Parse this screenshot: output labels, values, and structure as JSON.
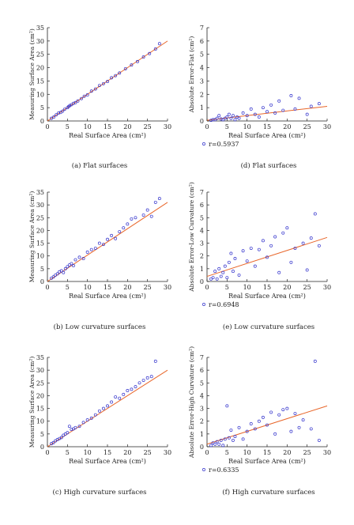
{
  "colors": {
    "points": "#3333cc",
    "fit_line": "#e8662a",
    "axis": "#222222"
  },
  "chart_data": [
    {
      "type": "scatter",
      "caption": "(a) Flat surfaces",
      "xlabel": "Real Surface Area (cm²)",
      "ylabel": "Measuring Surface Area (cm²)",
      "xlim": [
        0,
        30
      ],
      "ylim": [
        0,
        35
      ],
      "xticks": [
        0,
        5,
        10,
        15,
        20,
        25,
        30
      ],
      "yticks": [
        0,
        5,
        10,
        15,
        20,
        25,
        30,
        35
      ],
      "fit_line": [
        [
          0,
          0
        ],
        [
          30,
          30
        ]
      ],
      "points": [
        [
          1,
          1
        ],
        [
          1.6,
          1.5
        ],
        [
          2.2,
          2.3
        ],
        [
          2.8,
          3
        ],
        [
          3.3,
          3.2
        ],
        [
          3.8,
          3.7
        ],
        [
          4.3,
          4.4
        ],
        [
          5,
          5
        ],
        [
          5.3,
          5.4
        ],
        [
          5.6,
          5.8
        ],
        [
          6,
          6.1
        ],
        [
          6.5,
          6.6
        ],
        [
          7,
          6.9
        ],
        [
          7.6,
          7.5
        ],
        [
          8.5,
          8.4
        ],
        [
          9.2,
          9.3
        ],
        [
          10,
          9.8
        ],
        [
          11,
          11.2
        ],
        [
          12,
          12
        ],
        [
          13,
          13.3
        ],
        [
          14,
          14
        ],
        [
          15,
          14.8
        ],
        [
          16,
          16.2
        ],
        [
          17,
          17
        ],
        [
          18,
          18
        ],
        [
          19.5,
          19.6
        ],
        [
          21,
          21
        ],
        [
          22.5,
          22.3
        ],
        [
          24,
          24
        ],
        [
          25.5,
          25.3
        ],
        [
          27,
          27
        ],
        [
          28,
          29
        ]
      ]
    },
    {
      "type": "scatter",
      "caption": "(d) Flat surfaces",
      "xlabel": "Real Surface Area (cm²)",
      "ylabel": "Absolute Error-Flat (cm²)",
      "xlim": [
        0,
        30
      ],
      "ylim": [
        0,
        7
      ],
      "xticks": [
        0,
        5,
        10,
        15,
        20,
        25,
        30
      ],
      "yticks": [
        0,
        1,
        2,
        3,
        4,
        5,
        6,
        7
      ],
      "fit_line": [
        [
          0,
          0.05
        ],
        [
          30,
          1.1
        ]
      ],
      "legend": "r=0.5937",
      "points": [
        [
          1,
          0.05
        ],
        [
          1.5,
          0.1
        ],
        [
          2,
          0.1
        ],
        [
          2.5,
          0.2
        ],
        [
          3,
          0.4
        ],
        [
          3.5,
          0.15
        ],
        [
          4,
          0.1
        ],
        [
          4.5,
          0.2
        ],
        [
          5,
          0.3
        ],
        [
          5.5,
          0.5
        ],
        [
          6,
          0.2
        ],
        [
          6.5,
          0.4
        ],
        [
          7,
          0.1
        ],
        [
          7.5,
          0.3
        ],
        [
          8,
          0.2
        ],
        [
          9,
          0.6
        ],
        [
          10,
          0.4
        ],
        [
          11,
          0.9
        ],
        [
          12,
          0.5
        ],
        [
          13,
          0.3
        ],
        [
          14,
          1.0
        ],
        [
          15,
          0.7
        ],
        [
          16,
          1.2
        ],
        [
          17,
          0.6
        ],
        [
          18,
          1.5
        ],
        [
          19,
          0.8
        ],
        [
          21,
          1.9
        ],
        [
          22,
          0.9
        ],
        [
          23,
          1.7
        ],
        [
          25,
          0.5
        ],
        [
          26,
          1.1
        ],
        [
          28,
          1.3
        ]
      ]
    },
    {
      "type": "scatter",
      "caption": "(b) Low curvature surfaces",
      "xlabel": "Real Surface Area (cm²)",
      "ylabel": "Measuring Surface Area (cm²)",
      "xlim": [
        0,
        30
      ],
      "ylim": [
        0,
        35
      ],
      "xticks": [
        0,
        5,
        10,
        15,
        20,
        25,
        30
      ],
      "yticks": [
        0,
        5,
        10,
        15,
        20,
        25,
        30,
        35
      ],
      "fit_line": [
        [
          0,
          0
        ],
        [
          30,
          31
        ]
      ],
      "points": [
        [
          1,
          1.3
        ],
        [
          1.5,
          1.8
        ],
        [
          2,
          2.5
        ],
        [
          2.5,
          3
        ],
        [
          3,
          3.8
        ],
        [
          3.5,
          4.2
        ],
        [
          4,
          3.5
        ],
        [
          4.5,
          5
        ],
        [
          5,
          5.8
        ],
        [
          5.5,
          6.5
        ],
        [
          6,
          7
        ],
        [
          6.5,
          6.2
        ],
        [
          7,
          8.5
        ],
        [
          8,
          9.5
        ],
        [
          9,
          9
        ],
        [
          10,
          11.5
        ],
        [
          11,
          12.5
        ],
        [
          12,
          13
        ],
        [
          13,
          15
        ],
        [
          14,
          14.5
        ],
        [
          15,
          16.5
        ],
        [
          16,
          18
        ],
        [
          17,
          16.8
        ],
        [
          18,
          19.5
        ],
        [
          19,
          21
        ],
        [
          20,
          22.5
        ],
        [
          21,
          24.5
        ],
        [
          22,
          25
        ],
        [
          24,
          26
        ],
        [
          25,
          28
        ],
        [
          26,
          25.5
        ],
        [
          27,
          31
        ],
        [
          28,
          32.5
        ]
      ]
    },
    {
      "type": "scatter",
      "caption": "(e) Low curvature surfaces",
      "xlabel": "Real Surface Area (cm²)",
      "ylabel": "Absolute Error-Low Curvature (cm²)",
      "xlim": [
        0,
        30
      ],
      "ylim": [
        0,
        7
      ],
      "xticks": [
        0,
        5,
        10,
        15,
        20,
        25,
        30
      ],
      "yticks": [
        0,
        1,
        2,
        3,
        4,
        5,
        6,
        7
      ],
      "fit_line": [
        [
          0,
          0.4
        ],
        [
          30,
          3.45
        ]
      ],
      "legend": "r=0.6948",
      "points": [
        [
          1,
          0.2
        ],
        [
          1.5,
          0.3
        ],
        [
          2,
          0.8
        ],
        [
          2.5,
          0.2
        ],
        [
          3,
          1.0
        ],
        [
          3.5,
          0.4
        ],
        [
          4,
          0.7
        ],
        [
          4.5,
          1.2
        ],
        [
          5,
          0.3
        ],
        [
          5.5,
          1.5
        ],
        [
          6,
          2.2
        ],
        [
          6.5,
          0.8
        ],
        [
          7,
          1.8
        ],
        [
          8,
          0.5
        ],
        [
          9,
          2.4
        ],
        [
          10,
          1.6
        ],
        [
          11,
          2.6
        ],
        [
          12,
          1.2
        ],
        [
          13,
          2.5
        ],
        [
          14,
          3.2
        ],
        [
          15,
          1.9
        ],
        [
          16,
          2.8
        ],
        [
          17,
          3.5
        ],
        [
          18,
          0.7
        ],
        [
          19,
          3.8
        ],
        [
          20,
          4.2
        ],
        [
          21,
          1.5
        ],
        [
          22,
          2.6
        ],
        [
          24,
          3.0
        ],
        [
          25,
          0.9
        ],
        [
          26,
          3.4
        ],
        [
          27,
          5.3
        ],
        [
          28,
          2.8
        ]
      ]
    },
    {
      "type": "scatter",
      "caption": "(c) High curvature surfaces",
      "xlabel": "Real Surface Area (cm²)",
      "ylabel": "Measuring Surface Area (cm²)",
      "xlim": [
        0,
        30
      ],
      "ylim": [
        0,
        35
      ],
      "xticks": [
        0,
        5,
        10,
        15,
        20,
        25,
        30
      ],
      "yticks": [
        0,
        5,
        10,
        15,
        20,
        25,
        30,
        35
      ],
      "fit_line": [
        [
          0,
          0
        ],
        [
          30,
          30
        ]
      ],
      "points": [
        [
          1,
          1.2
        ],
        [
          1.5,
          1.6
        ],
        [
          2,
          2.3
        ],
        [
          2.5,
          2.8
        ],
        [
          3,
          3.2
        ],
        [
          3.5,
          3.6
        ],
        [
          4,
          4.5
        ],
        [
          4.5,
          5
        ],
        [
          5,
          5.5
        ],
        [
          5.5,
          8
        ],
        [
          6,
          6.8
        ],
        [
          6.5,
          7
        ],
        [
          7,
          7.5
        ],
        [
          8,
          8
        ],
        [
          9,
          9.5
        ],
        [
          10,
          10.5
        ],
        [
          11,
          11.2
        ],
        [
          12,
          12.5
        ],
        [
          13,
          14
        ],
        [
          14,
          15
        ],
        [
          15,
          16
        ],
        [
          16,
          17.5
        ],
        [
          17,
          19.5
        ],
        [
          18,
          19
        ],
        [
          19,
          20.5
        ],
        [
          20,
          22
        ],
        [
          21,
          22.5
        ],
        [
          22,
          23.5
        ],
        [
          23,
          25
        ],
        [
          24,
          26
        ],
        [
          25,
          27
        ],
        [
          26,
          27.5
        ],
        [
          27,
          33.5
        ]
      ]
    },
    {
      "type": "scatter",
      "caption": "(f) High curvature surfaces",
      "xlabel": "Real Surface Area (cm²)",
      "ylabel": "Absolute Error-High Curvature (cm²)",
      "xlim": [
        0,
        30
      ],
      "ylim": [
        0,
        7
      ],
      "xticks": [
        0,
        5,
        10,
        15,
        20,
        25,
        30
      ],
      "yticks": [
        0,
        1,
        2,
        3,
        4,
        5,
        6,
        7
      ],
      "fit_line": [
        [
          0,
          0.2
        ],
        [
          30,
          3.2
        ]
      ],
      "legend": "r=0.6335",
      "points": [
        [
          1,
          0.1
        ],
        [
          1.5,
          0.3
        ],
        [
          2,
          0.2
        ],
        [
          2.5,
          0.4
        ],
        [
          3,
          0.2
        ],
        [
          3.5,
          0.5
        ],
        [
          4,
          0.1
        ],
        [
          4.5,
          0.6
        ],
        [
          5,
          3.2
        ],
        [
          5.5,
          0.7
        ],
        [
          6,
          1.3
        ],
        [
          6.5,
          0.5
        ],
        [
          7,
          0.8
        ],
        [
          8,
          1.5
        ],
        [
          9,
          0.6
        ],
        [
          10,
          1.2
        ],
        [
          11,
          1.8
        ],
        [
          12,
          1.4
        ],
        [
          13,
          2.0
        ],
        [
          14,
          2.3
        ],
        [
          15,
          1.7
        ],
        [
          16,
          2.7
        ],
        [
          17,
          1.0
        ],
        [
          18,
          2.5
        ],
        [
          19,
          2.9
        ],
        [
          20,
          3.0
        ],
        [
          21,
          1.2
        ],
        [
          22,
          2.6
        ],
        [
          23,
          1.5
        ],
        [
          24,
          2.1
        ],
        [
          26,
          1.4
        ],
        [
          27,
          6.7
        ],
        [
          28,
          0.5
        ]
      ]
    }
  ]
}
